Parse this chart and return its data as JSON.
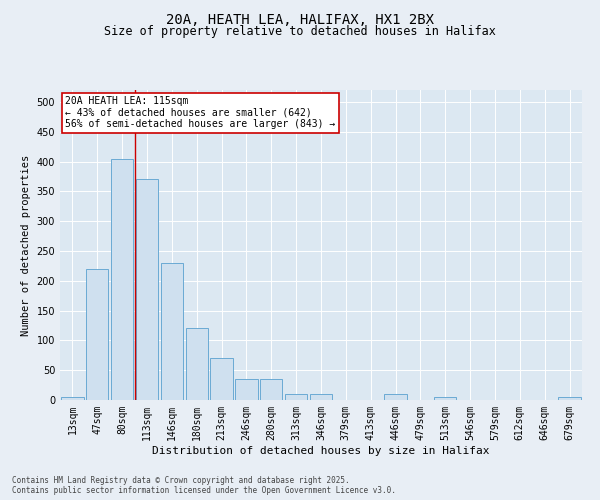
{
  "title_line1": "20A, HEATH LEA, HALIFAX, HX1 2BX",
  "title_line2": "Size of property relative to detached houses in Halifax",
  "xlabel": "Distribution of detached houses by size in Halifax",
  "ylabel": "Number of detached properties",
  "bar_color": "#cfe0ef",
  "bar_edge_color": "#6aaad4",
  "background_color": "#e8eef5",
  "axis_bg_color": "#dce8f2",
  "categories": [
    "13sqm",
    "47sqm",
    "80sqm",
    "113sqm",
    "146sqm",
    "180sqm",
    "213sqm",
    "246sqm",
    "280sqm",
    "313sqm",
    "346sqm",
    "379sqm",
    "413sqm",
    "446sqm",
    "479sqm",
    "513sqm",
    "546sqm",
    "579sqm",
    "612sqm",
    "646sqm",
    "679sqm"
  ],
  "values": [
    5,
    220,
    405,
    370,
    230,
    120,
    70,
    35,
    35,
    10,
    10,
    0,
    0,
    10,
    0,
    5,
    0,
    0,
    0,
    0,
    5
  ],
  "ylim": [
    0,
    520
  ],
  "yticks": [
    0,
    50,
    100,
    150,
    200,
    250,
    300,
    350,
    400,
    450,
    500
  ],
  "vline_index": 3,
  "vline_color": "#cc0000",
  "annotation_text": "20A HEATH LEA: 115sqm\n← 43% of detached houses are smaller (642)\n56% of semi-detached houses are larger (843) →",
  "annotation_box_color": "#ffffff",
  "annotation_box_edge_color": "#cc0000",
  "footnote": "Contains HM Land Registry data © Crown copyright and database right 2025.\nContains public sector information licensed under the Open Government Licence v3.0.",
  "grid_color": "#ffffff",
  "title_fontsize": 10,
  "subtitle_fontsize": 8.5,
  "xlabel_fontsize": 8,
  "ylabel_fontsize": 7.5,
  "tick_fontsize": 7,
  "annotation_fontsize": 7,
  "footnote_fontsize": 5.5
}
